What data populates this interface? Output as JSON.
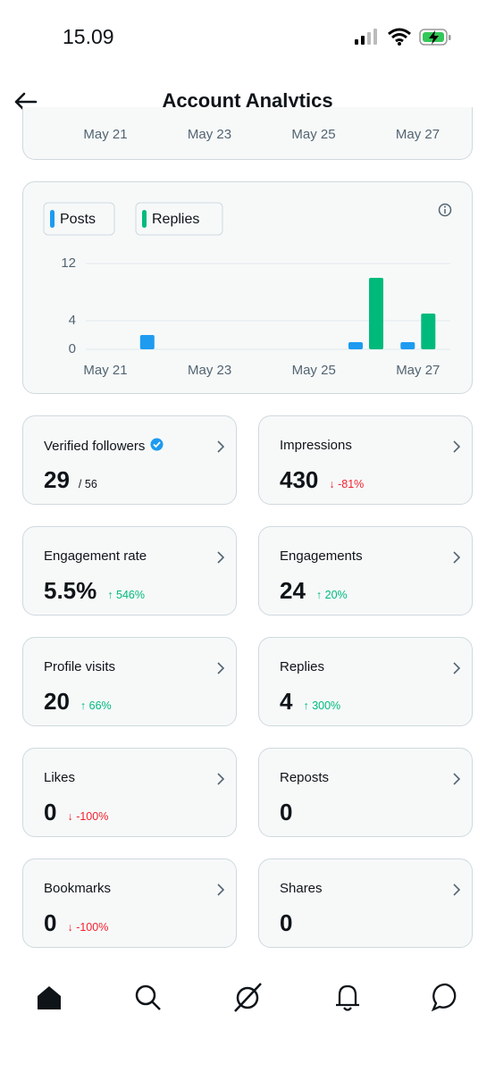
{
  "status_bar": {
    "time": "15.09"
  },
  "header": {
    "title": "Account Analytics"
  },
  "previous_chart": {
    "x_labels": [
      "May 21",
      "May 23",
      "May 25",
      "May 27"
    ]
  },
  "chart_data": {
    "type": "bar",
    "categories": [
      "May 21",
      null,
      "May 23",
      null,
      "May 25",
      null,
      "May 27"
    ],
    "series": [
      {
        "name": "Posts",
        "color": "#1d9bf0",
        "values": [
          0,
          2,
          0,
          0,
          0,
          1,
          1
        ]
      },
      {
        "name": "Replies",
        "color": "#00ba7c",
        "values": [
          0,
          0,
          0,
          0,
          0,
          10,
          5
        ]
      }
    ],
    "ylim": [
      0,
      12
    ],
    "yticks": [
      0,
      4,
      12
    ],
    "grid": true
  },
  "metrics": [
    {
      "label": "Verified followers",
      "value": "29",
      "total": "/ 56",
      "badge": true
    },
    {
      "label": "Impressions",
      "value": "430",
      "change": "↓ -81%",
      "change_color": "#f4212e"
    },
    {
      "label": "Engagement rate",
      "value": "5.5%",
      "change": "↑ 546%",
      "change_color": "#00ba7c"
    },
    {
      "label": "Engagements",
      "value": "24",
      "change": "↑ 20%",
      "change_color": "#00ba7c"
    },
    {
      "label": "Profile visits",
      "value": "20",
      "change": "↑ 66%",
      "change_color": "#00ba7c"
    },
    {
      "label": "Replies",
      "value": "4",
      "change": "↑ 300%",
      "change_color": "#00ba7c"
    },
    {
      "label": "Likes",
      "value": "0",
      "change": "↓ -100%",
      "change_color": "#f4212e"
    },
    {
      "label": "Reposts",
      "value": "0"
    },
    {
      "label": "Bookmarks",
      "value": "0",
      "change": "↓ -100%",
      "change_color": "#f4212e"
    },
    {
      "label": "Shares",
      "value": "0"
    }
  ]
}
